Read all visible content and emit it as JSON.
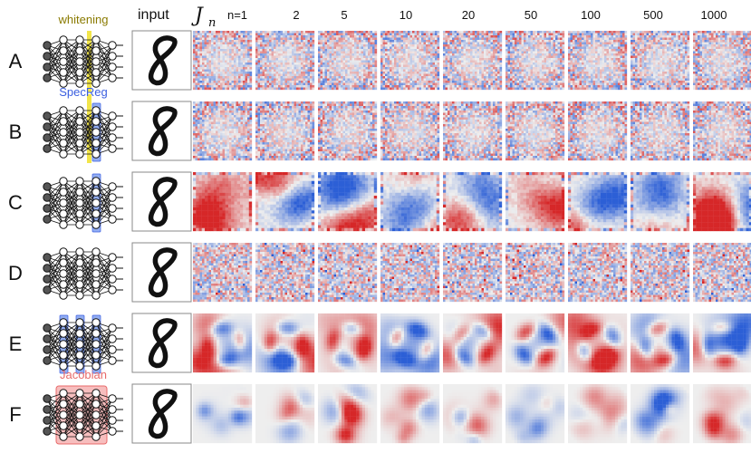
{
  "header": {
    "input_label": "input",
    "jn_symbol": "J",
    "jn_subscript": "n",
    "columns": [
      "n=1",
      "2",
      "5",
      "10",
      "20",
      "50",
      "100",
      "500",
      "1000"
    ]
  },
  "rows": [
    {
      "label": "A",
      "network_label": "whitening",
      "network_label_color": "#8a7a00",
      "map_style": "noise"
    },
    {
      "label": "B",
      "network_label": "SpecReg",
      "network_label_color": "#3b5fe0",
      "map_style": "noise"
    },
    {
      "label": "C",
      "network_label": "",
      "map_style": "smooth"
    },
    {
      "label": "D",
      "network_label": "",
      "map_style": "speckle"
    },
    {
      "label": "E",
      "network_label": "",
      "map_style": "structured"
    },
    {
      "label": "F",
      "network_label": "Jacobian",
      "network_label_color": "#e86a6a",
      "map_style": "sparse"
    }
  ],
  "colors": {
    "positive": "#d62728",
    "negative": "#2c5fd6",
    "neutral": "#eeeeee",
    "whitening_band": "#f2e54a",
    "specreg_band": "#7f9ff0",
    "jacobian_box": "#f4a3a3"
  }
}
